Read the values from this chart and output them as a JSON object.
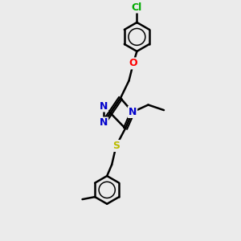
{
  "bg_color": "#ebebeb",
  "atom_colors": {
    "C": "#000000",
    "N": "#0000cc",
    "O": "#ff0000",
    "S": "#bbbb00",
    "Cl": "#00aa00"
  },
  "bond_color": "#000000",
  "bond_width": 1.8,
  "figsize": [
    3.0,
    3.0
  ],
  "dpi": 100,
  "xlim": [
    0,
    10
  ],
  "ylim": [
    0,
    10
  ]
}
